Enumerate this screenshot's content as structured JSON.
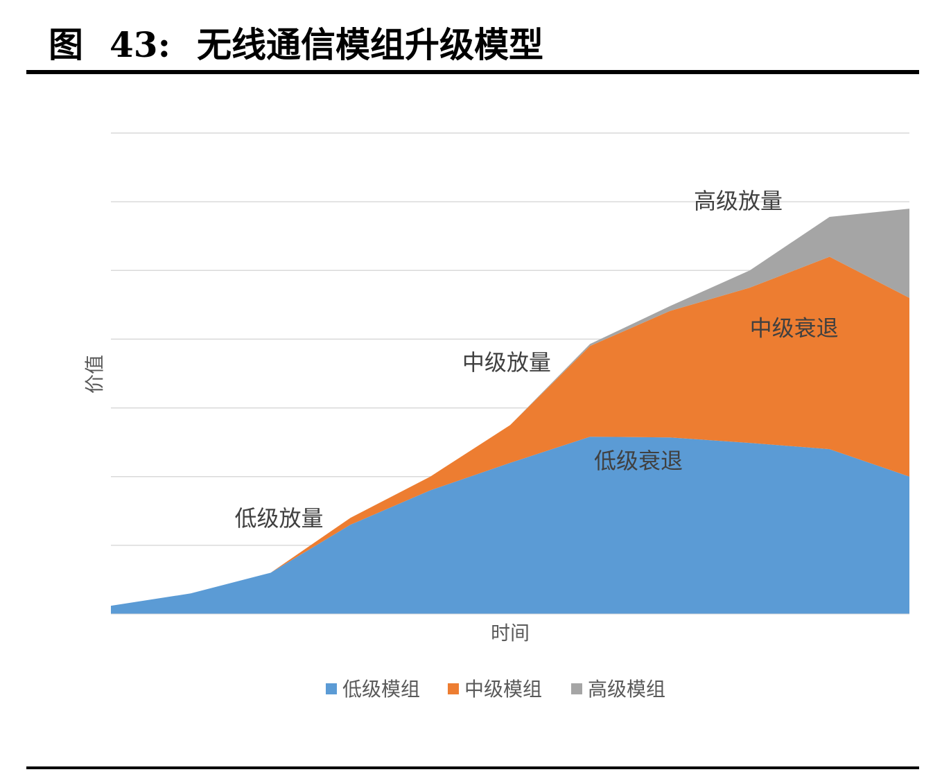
{
  "figure": {
    "label": "图",
    "number": "43:",
    "title": "无线通信模组升级模型"
  },
  "chart_data": {
    "type": "area",
    "stacked": true,
    "xlabel": "时间",
    "ylabel": "价值",
    "x": [
      0,
      1,
      2,
      3,
      4,
      5,
      6,
      7,
      8,
      9,
      10
    ],
    "ylim": [
      0,
      7
    ],
    "grid": true,
    "legend_position": "bottom",
    "series": [
      {
        "name": "低级模组",
        "color": "#5b9bd5",
        "values": [
          0.12,
          0.3,
          0.6,
          1.3,
          1.8,
          2.2,
          2.58,
          2.57,
          2.49,
          2.4,
          2.0
        ]
      },
      {
        "name": "中级模组",
        "color": "#ed7d31",
        "values": [
          0,
          0,
          0,
          0.1,
          0.2,
          0.55,
          1.32,
          1.84,
          2.26,
          2.8,
          2.6
        ]
      },
      {
        "name": "高级模组",
        "color": "#a5a5a5",
        "values": [
          0,
          0,
          0,
          0,
          0,
          0,
          0.03,
          0.07,
          0.25,
          0.58,
          1.3
        ]
      }
    ],
    "annotations": [
      {
        "text": "低级放量",
        "x": 1.55,
        "y": 1.28
      },
      {
        "text": "中级放量",
        "x": 4.4,
        "y": 3.55
      },
      {
        "text": "低级衰退",
        "x": 6.05,
        "y": 2.12
      },
      {
        "text": "高级放量",
        "x": 7.3,
        "y": 5.9
      },
      {
        "text": "中级衰退",
        "x": 8.0,
        "y": 4.05
      }
    ]
  }
}
